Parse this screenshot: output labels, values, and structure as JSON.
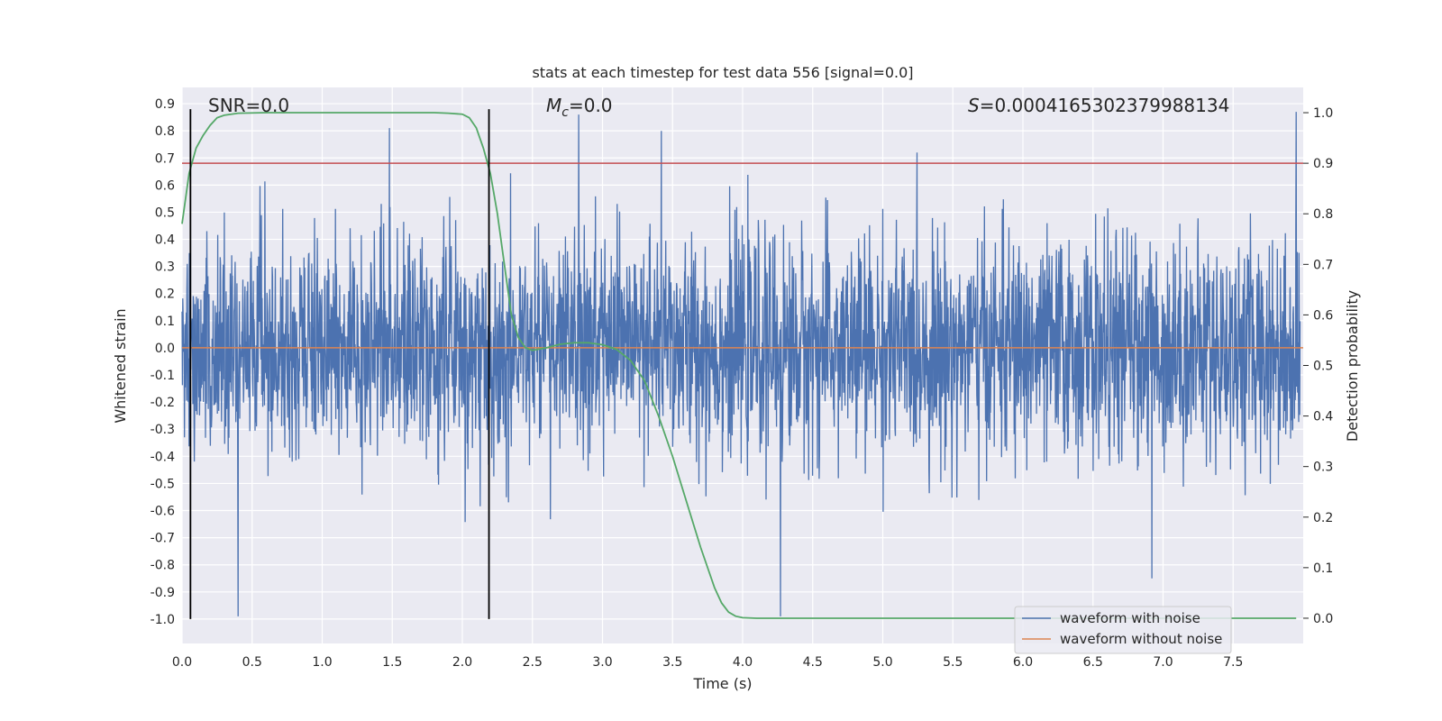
{
  "chart_data": {
    "type": "line",
    "title": "stats at each timestep for test data 556 [signal=0.0]",
    "xlabel": "Time (s)",
    "ylabel": "Whitened strain",
    "y2label": "Detection probability",
    "xlim": [
      0.0,
      8.0
    ],
    "ylim": [
      -1.09,
      0.96
    ],
    "y2lim": [
      -0.05,
      1.05
    ],
    "xticks": [
      "0.0",
      "0.5",
      "1.0",
      "1.5",
      "2.0",
      "2.5",
      "3.0",
      "3.5",
      "4.0",
      "4.5",
      "5.0",
      "5.5",
      "6.0",
      "6.5",
      "7.0",
      "7.5"
    ],
    "yticks": [
      "0.9",
      "0.8",
      "0.7",
      "0.6",
      "0.5",
      "0.4",
      "0.3",
      "0.2",
      "0.1",
      "0.0",
      "-0.1",
      "-0.2",
      "-0.3",
      "-0.4",
      "-0.5",
      "-0.6",
      "-0.7",
      "-0.8",
      "-0.9",
      "-1.0"
    ],
    "y2ticks": [
      "0.0",
      "0.1",
      "0.2",
      "0.3",
      "0.4",
      "0.5",
      "0.6",
      "0.7",
      "0.8",
      "0.9",
      "1.0"
    ],
    "annotations": {
      "snr": "SNR=0.0",
      "mc_symbol": "M",
      "mc_sub": "c",
      "mc_value": "=0.0",
      "s_symbol": "S",
      "s_value": "=0.0004165302379988134"
    },
    "legend": {
      "position": "lower-right",
      "entries": [
        "waveform with noise",
        "waveform without noise"
      ]
    },
    "series": [
      {
        "name": "waveform with noise",
        "color": "#4c72b0",
        "description_source": "dense whitened noise, spikes read at approximate peaks",
        "y_range": [
          -0.99,
          0.87
        ],
        "peaks": [
          [
            0.4,
            -0.99
          ],
          [
            1.48,
            0.81
          ],
          [
            2.83,
            0.86
          ],
          [
            3.42,
            0.8
          ],
          [
            4.27,
            -0.99
          ],
          [
            7.95,
            0.87
          ],
          [
            6.92,
            -0.85
          ]
        ]
      },
      {
        "name": "waveform without noise",
        "color": "#dd8452",
        "x": [
          0.0,
          8.0
        ],
        "y": [
          0.0,
          0.0
        ]
      },
      {
        "color": "#55a868",
        "axis": "secondary",
        "x": [
          0.0,
          0.05,
          0.1,
          0.15,
          0.2,
          0.25,
          0.3,
          0.4,
          0.6,
          1.0,
          1.5,
          1.8,
          1.9,
          2.0,
          2.05,
          2.1,
          2.15,
          2.2,
          2.25,
          2.3,
          2.35,
          2.4,
          2.45,
          2.5,
          2.6,
          2.7,
          2.8,
          2.9,
          3.0,
          3.1,
          3.2,
          3.3,
          3.4,
          3.5,
          3.6,
          3.7,
          3.8,
          3.85,
          3.9,
          3.95,
          4.0,
          4.1,
          4.3,
          5.0,
          6.0,
          7.0,
          7.95
        ],
        "y": [
          0.78,
          0.88,
          0.93,
          0.955,
          0.975,
          0.99,
          0.995,
          0.999,
          1.0,
          1.0,
          1.0,
          1.0,
          0.999,
          0.997,
          0.99,
          0.97,
          0.93,
          0.88,
          0.8,
          0.7,
          0.6,
          0.555,
          0.535,
          0.53,
          0.535,
          0.542,
          0.545,
          0.545,
          0.541,
          0.532,
          0.51,
          0.47,
          0.4,
          0.32,
          0.23,
          0.14,
          0.06,
          0.03,
          0.012,
          0.004,
          0.001,
          0.0,
          0.0,
          0.0,
          0.0,
          0.0,
          0.0
        ]
      },
      {
        "color": "#c44e52",
        "axis": "secondary",
        "x": [
          0.0,
          8.0
        ],
        "y": [
          0.9,
          0.9
        ]
      }
    ],
    "vertical_lines": {
      "color": "#000000",
      "x": [
        0.06,
        2.19
      ],
      "y_range": [
        -1.0,
        0.88
      ]
    }
  }
}
